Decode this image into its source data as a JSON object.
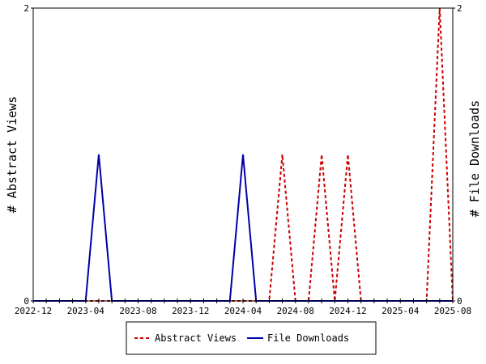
{
  "chart_data": {
    "type": "line",
    "title": "",
    "x_ticks": [
      "2022-12",
      "2023-04",
      "2023-08",
      "2023-12",
      "2024-04",
      "2024-08",
      "2024-12",
      "2025-04",
      "2025-08"
    ],
    "x_range": [
      "2022-12",
      "2025-08"
    ],
    "y_left": {
      "label": "# Abstract Views",
      "ticks": [
        "0",
        "2"
      ],
      "range": [
        0,
        2
      ]
    },
    "y_right": {
      "label": "# File Downloads",
      "ticks": [
        "0",
        "2"
      ],
      "range": [
        0,
        2
      ]
    },
    "grid": false,
    "legend_position": "bottom",
    "series": [
      {
        "name": "Abstract Views",
        "axis": "left",
        "style": "dashed",
        "color": "#cc0000",
        "points": [
          [
            "2022-12",
            0
          ],
          [
            "2024-06",
            0
          ],
          [
            "2024-07",
            1
          ],
          [
            "2024-08",
            0
          ],
          [
            "2024-09",
            0
          ],
          [
            "2024-10",
            1
          ],
          [
            "2024-11",
            0
          ],
          [
            "2024-12",
            1
          ],
          [
            "2025-01",
            0
          ],
          [
            "2025-06",
            0
          ],
          [
            "2025-07",
            2
          ],
          [
            "2025-08",
            0
          ]
        ]
      },
      {
        "name": "File Downloads",
        "axis": "right",
        "style": "solid",
        "color": "#0000aa",
        "points": [
          [
            "2022-12",
            0
          ],
          [
            "2023-04",
            0
          ],
          [
            "2023-05",
            1
          ],
          [
            "2023-06",
            0
          ],
          [
            "2024-03",
            0
          ],
          [
            "2024-04",
            1
          ],
          [
            "2024-05",
            0
          ],
          [
            "2025-08",
            0
          ]
        ]
      }
    ]
  }
}
